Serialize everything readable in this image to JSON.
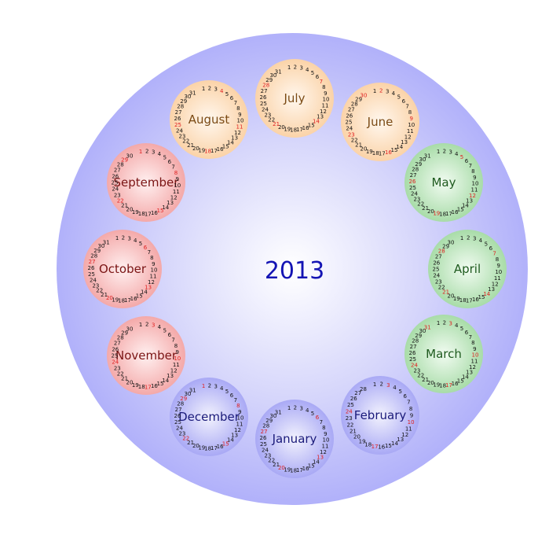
{
  "year": "2013",
  "colors": {
    "outer_disc": "#b1b1fa",
    "inner_glow": "#ffffff",
    "red_day": "#e02020",
    "day_text": "#111111",
    "winter_fill": "#c9c9f7",
    "winter_edge": "#a9a9f5",
    "winter_text": "#1a1a7a",
    "spring_fill": "#c9edc9",
    "spring_edge": "#a8dca8",
    "spring_text": "#1e5a1e",
    "summer_fill": "#fde6cc",
    "summer_edge": "#fbd3a8",
    "summer_text": "#7a4a14",
    "autumn_fill": "#fbcaca",
    "autumn_edge": "#f4a9a9",
    "autumn_text": "#7a1414"
  },
  "months": [
    {
      "name": "January",
      "season": "winter",
      "days": 31,
      "red": [
        6,
        13,
        20,
        27
      ]
    },
    {
      "name": "February",
      "season": "winter",
      "days": 28,
      "red": [
        3,
        10,
        17,
        24
      ]
    },
    {
      "name": "March",
      "season": "spring",
      "days": 31,
      "red": [
        3,
        10,
        17,
        24,
        31
      ]
    },
    {
      "name": "April",
      "season": "spring",
      "days": 30,
      "red": [
        7,
        14,
        21,
        28
      ]
    },
    {
      "name": "May",
      "season": "spring",
      "days": 31,
      "red": [
        5,
        12,
        19,
        26
      ]
    },
    {
      "name": "June",
      "season": "summer",
      "days": 30,
      "red": [
        2,
        9,
        16,
        23,
        30
      ]
    },
    {
      "name": "July",
      "season": "summer",
      "days": 31,
      "red": [
        7,
        14,
        21,
        28
      ]
    },
    {
      "name": "August",
      "season": "summer",
      "days": 31,
      "red": [
        4,
        11,
        18,
        25
      ]
    },
    {
      "name": "September",
      "season": "autumn",
      "days": 30,
      "red": [
        1,
        8,
        15,
        22,
        29
      ]
    },
    {
      "name": "October",
      "season": "autumn",
      "days": 31,
      "red": [
        6,
        13,
        20,
        27
      ]
    },
    {
      "name": "November",
      "season": "autumn",
      "days": 30,
      "red": [
        3,
        10,
        17,
        24
      ]
    },
    {
      "name": "December",
      "season": "winter",
      "days": 31,
      "red": [
        1,
        8,
        15,
        22,
        29
      ]
    }
  ]
}
